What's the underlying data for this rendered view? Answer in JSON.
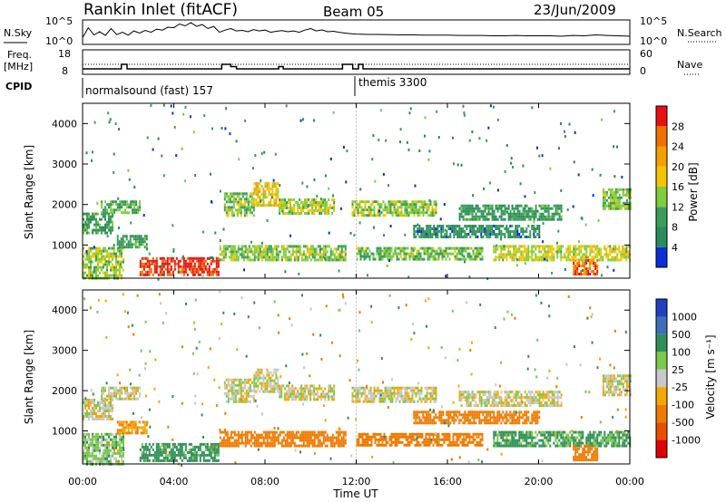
{
  "header": {
    "station": "Rankin Inlet (fitACF)",
    "beam": "Beam 05",
    "date": "23/Jun/2009"
  },
  "nsky_panel": {
    "left_label": "N.Sky",
    "left_ticks": [
      "10^5",
      "10^0"
    ],
    "right_ticks": [
      "10^5",
      "10^0"
    ],
    "right_label": "N.Search"
  },
  "freq_panel": {
    "label_line1": "Freq.",
    "label_line2": "[MHz]",
    "left_ticks": [
      "18",
      "8"
    ],
    "right_ticks": [
      "60",
      "0"
    ],
    "right_label": "Nave"
  },
  "cpid": {
    "label": "CPID",
    "segments": [
      {
        "text": "normalsound (fast) 157",
        "start_hour": 0
      },
      {
        "text": "themis 3300",
        "start_hour": 12
      }
    ]
  },
  "colors": {
    "power_scale": [
      "#0a2fd8",
      "#2a8c5a",
      "#3a9e5a",
      "#7fcd3a",
      "#f5c400",
      "#f5a000",
      "#f07000",
      "#e81010"
    ],
    "velocity_scale": [
      "#2040c0",
      "#3a70b8",
      "#2e8f58",
      "#79c94a",
      "#c8c8c8",
      "#f5a800",
      "#f07a00",
      "#e85000",
      "#e00000"
    ],
    "ground_scatter": "#bdbdbd"
  },
  "chart_data": [
    {
      "type": "line",
      "name": "N.Sky / N.Search",
      "x_range_hours": [
        0,
        24
      ],
      "y_scale": "log",
      "ylim": [
        1,
        100000
      ],
      "hours": [
        0.0,
        0.25,
        0.5,
        0.75,
        1.0,
        1.25,
        1.5,
        1.75,
        2.0,
        2.25,
        2.5,
        2.75,
        3.0,
        3.25,
        3.5,
        3.75,
        4.0,
        4.25,
        4.5,
        4.75,
        5.0,
        5.25,
        5.5,
        5.75,
        6.0,
        6.25,
        6.5,
        6.75,
        7.0,
        7.25,
        7.5,
        7.75,
        8.0,
        8.25,
        8.5,
        8.75,
        9.0,
        9.25,
        9.5,
        9.75,
        10.0,
        10.25,
        10.5,
        10.75,
        11.0,
        11.25,
        11.5,
        11.75,
        12.0,
        12.5,
        13.0,
        13.5,
        14.0,
        14.5,
        15.0,
        15.5,
        16.0,
        16.5,
        17.0,
        17.5,
        18.0,
        18.5,
        19.0,
        19.5,
        20.0,
        20.5,
        21.0,
        21.5,
        22.0,
        22.5,
        23.0,
        23.5,
        24.0
      ],
      "nsky": [
        20,
        3000,
        80,
        400,
        60,
        2000,
        90,
        300,
        70,
        600,
        200,
        800,
        300,
        1500,
        900,
        4000,
        3000,
        20000,
        8000,
        40000,
        6000,
        15000,
        2000,
        6000,
        300,
        900,
        2000,
        600,
        800,
        400,
        1200,
        600,
        900,
        300,
        500,
        700,
        400,
        600,
        300,
        900,
        2000,
        600,
        1000,
        400,
        500,
        300,
        200,
        150,
        120,
        100,
        100,
        90,
        80,
        80,
        70,
        70,
        70,
        60,
        60,
        60,
        50,
        50,
        60,
        50,
        50,
        50,
        40,
        60,
        50,
        80,
        60,
        50,
        40
      ]
    },
    {
      "type": "line",
      "name": "Freq. / Nave",
      "x_range_hours": [
        0,
        24
      ],
      "ylim": [
        8,
        18
      ],
      "y2lim": [
        0,
        60
      ],
      "freq_segments": [
        {
          "from": 0.0,
          "to": 1.7,
          "mhz": 10
        },
        {
          "from": 1.7,
          "to": 1.95,
          "mhz": 12
        },
        {
          "from": 1.95,
          "to": 6.1,
          "mhz": 10
        },
        {
          "from": 6.1,
          "to": 6.5,
          "mhz": 12
        },
        {
          "from": 6.5,
          "to": 6.75,
          "mhz": 11
        },
        {
          "from": 6.75,
          "to": 8.6,
          "mhz": 10
        },
        {
          "from": 8.6,
          "to": 8.8,
          "mhz": 11
        },
        {
          "from": 8.8,
          "to": 11.4,
          "mhz": 10
        },
        {
          "from": 11.4,
          "to": 11.85,
          "mhz": 12
        },
        {
          "from": 11.85,
          "to": 12.1,
          "mhz": 10
        },
        {
          "from": 12.1,
          "to": 12.3,
          "mhz": 12
        },
        {
          "from": 12.3,
          "to": 24.0,
          "mhz": 10
        }
      ],
      "nave_dotted_level": 12
    },
    {
      "type": "heatmap",
      "parameter": "Power",
      "title": "",
      "xlabel": "",
      "ylabel": "Slant Range [km]",
      "x_range_hours": [
        0,
        24
      ],
      "ylim_km": [
        180,
        4500
      ],
      "y_ticks": [
        1000,
        2000,
        3000,
        4000
      ],
      "colorbar_label": "Power [dB]",
      "colorbar_ticks": [
        "4",
        "8",
        "12",
        "16",
        "20",
        "24",
        "28"
      ],
      "colorbar_range": [
        0,
        30
      ],
      "regions": [
        {
          "from_hour": 0.0,
          "to_hour": 1.8,
          "range_low_km": 200,
          "range_high_km": 950,
          "value_db": 14
        },
        {
          "from_hour": 0.0,
          "to_hour": 1.3,
          "range_low_km": 1300,
          "range_high_km": 1800,
          "value_db": 9
        },
        {
          "from_hour": 0.8,
          "to_hour": 2.5,
          "range_low_km": 1800,
          "range_high_km": 2100,
          "value_db": 10
        },
        {
          "from_hour": 2.5,
          "to_hour": 6.0,
          "range_low_km": 250,
          "range_high_km": 700,
          "value_db": 28
        },
        {
          "from_hour": 1.5,
          "to_hour": 2.8,
          "range_low_km": 950,
          "range_high_km": 1250,
          "value_db": 8
        },
        {
          "from_hour": 6.2,
          "to_hour": 7.5,
          "range_low_km": 1700,
          "range_high_km": 2300,
          "value_db": 13
        },
        {
          "from_hour": 7.5,
          "to_hour": 8.6,
          "range_low_km": 2000,
          "range_high_km": 2550,
          "value_db": 17
        },
        {
          "from_hour": 8.6,
          "to_hour": 11.0,
          "range_low_km": 1750,
          "range_high_km": 2150,
          "value_db": 14
        },
        {
          "from_hour": 6.0,
          "to_hour": 11.5,
          "range_low_km": 650,
          "range_high_km": 1000,
          "value_db": 13
        },
        {
          "from_hour": 11.8,
          "to_hour": 15.5,
          "range_low_km": 1750,
          "range_high_km": 2100,
          "value_db": 13
        },
        {
          "from_hour": 12.0,
          "to_hour": 17.5,
          "range_low_km": 650,
          "range_high_km": 950,
          "value_db": 12
        },
        {
          "from_hour": 14.5,
          "to_hour": 20.0,
          "range_low_km": 1200,
          "range_high_km": 1500,
          "value_db": 7
        },
        {
          "from_hour": 16.5,
          "to_hour": 21.0,
          "range_low_km": 1600,
          "range_high_km": 2000,
          "value_db": 8
        },
        {
          "from_hour": 18.0,
          "to_hour": 24.0,
          "range_low_km": 650,
          "range_high_km": 1000,
          "value_db": 15
        },
        {
          "from_hour": 21.5,
          "to_hour": 22.6,
          "range_low_km": 300,
          "range_high_km": 650,
          "value_db": 24
        },
        {
          "from_hour": 22.8,
          "to_hour": 24.0,
          "range_low_km": 1900,
          "range_high_km": 2400,
          "value_db": 12
        }
      ]
    },
    {
      "type": "heatmap",
      "parameter": "Velocity",
      "title": "",
      "xlabel": "Time UT",
      "ylabel": "Slant Range [km]",
      "x_range_hours": [
        0,
        24
      ],
      "x_ticks": [
        "00:00",
        "04:00",
        "08:00",
        "12:00",
        "16:00",
        "20:00",
        "00:00"
      ],
      "ylim_km": [
        180,
        4500
      ],
      "y_ticks": [
        1000,
        2000,
        3000,
        4000
      ],
      "colorbar_label": "Velocity [m s⁻¹]",
      "colorbar_ticks": [
        "-1000",
        "-500",
        "-100",
        "-25",
        "25",
        "100",
        "500",
        "1000"
      ],
      "regions": [
        {
          "from_hour": 0.0,
          "to_hour": 1.8,
          "range_low_km": 200,
          "range_high_km": 950,
          "value_ms": 60
        },
        {
          "from_hour": 0.0,
          "to_hour": 1.3,
          "range_low_km": 1300,
          "range_high_km": 1800,
          "value_ms": 0
        },
        {
          "from_hour": 0.8,
          "to_hour": 2.5,
          "range_low_km": 1800,
          "range_high_km": 2100,
          "value_ms": 0
        },
        {
          "from_hour": 2.5,
          "to_hour": 6.0,
          "range_low_km": 250,
          "range_high_km": 700,
          "value_ms": 150
        },
        {
          "from_hour": 1.5,
          "to_hour": 2.8,
          "range_low_km": 950,
          "range_high_km": 1250,
          "value_ms": -80
        },
        {
          "from_hour": 6.2,
          "to_hour": 7.5,
          "range_low_km": 1700,
          "range_high_km": 2300,
          "value_ms": 0
        },
        {
          "from_hour": 7.5,
          "to_hour": 8.6,
          "range_low_km": 2000,
          "range_high_km": 2550,
          "value_ms": 0
        },
        {
          "from_hour": 8.6,
          "to_hour": 11.0,
          "range_low_km": 1750,
          "range_high_km": 2150,
          "value_ms": 0
        },
        {
          "from_hour": 6.0,
          "to_hour": 11.5,
          "range_low_km": 650,
          "range_high_km": 1000,
          "value_ms": -200
        },
        {
          "from_hour": 11.8,
          "to_hour": 15.5,
          "range_low_km": 1750,
          "range_high_km": 2100,
          "value_ms": 0
        },
        {
          "from_hour": 12.0,
          "to_hour": 17.5,
          "range_low_km": 650,
          "range_high_km": 950,
          "value_ms": -300
        },
        {
          "from_hour": 14.5,
          "to_hour": 20.0,
          "range_low_km": 1200,
          "range_high_km": 1500,
          "value_ms": -400
        },
        {
          "from_hour": 16.5,
          "to_hour": 21.0,
          "range_low_km": 1600,
          "range_high_km": 2000,
          "value_ms": 0
        },
        {
          "from_hour": 18.0,
          "to_hour": 24.0,
          "range_low_km": 650,
          "range_high_km": 1000,
          "value_ms": 120
        },
        {
          "from_hour": 21.5,
          "to_hour": 22.6,
          "range_low_km": 300,
          "range_high_km": 650,
          "value_ms": -300
        },
        {
          "from_hour": 22.8,
          "to_hour": 24.0,
          "range_low_km": 1900,
          "range_high_km": 2400,
          "value_ms": 0
        }
      ]
    }
  ]
}
